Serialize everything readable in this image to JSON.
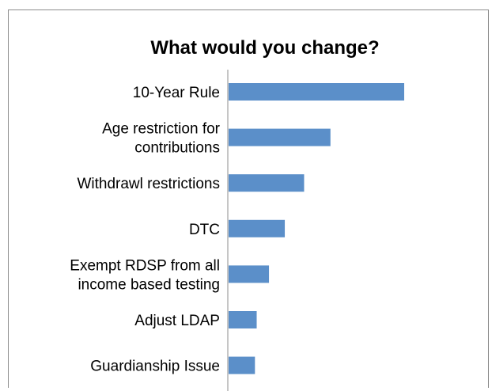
{
  "chart_data": {
    "type": "bar",
    "orientation": "horizontal",
    "title": "What would you change?",
    "categories": [
      [
        "10-Year Rule"
      ],
      [
        "Age restriction for",
        "contributions"
      ],
      [
        "Withdrawl restrictions"
      ],
      [
        "DTC"
      ],
      [
        "Exempt RDSP from all",
        "income based testing"
      ],
      [
        "Adjust LDAP"
      ],
      [
        "Guardianship Issue"
      ]
    ],
    "values": [
      100,
      58,
      43,
      32,
      23,
      16,
      15
    ],
    "xlim": [
      0,
      100
    ],
    "bar_color": "#5b8fc9",
    "axis_color": "#8c8c8c",
    "grid": false,
    "legend": "none",
    "xlabel": "",
    "ylabel": ""
  }
}
